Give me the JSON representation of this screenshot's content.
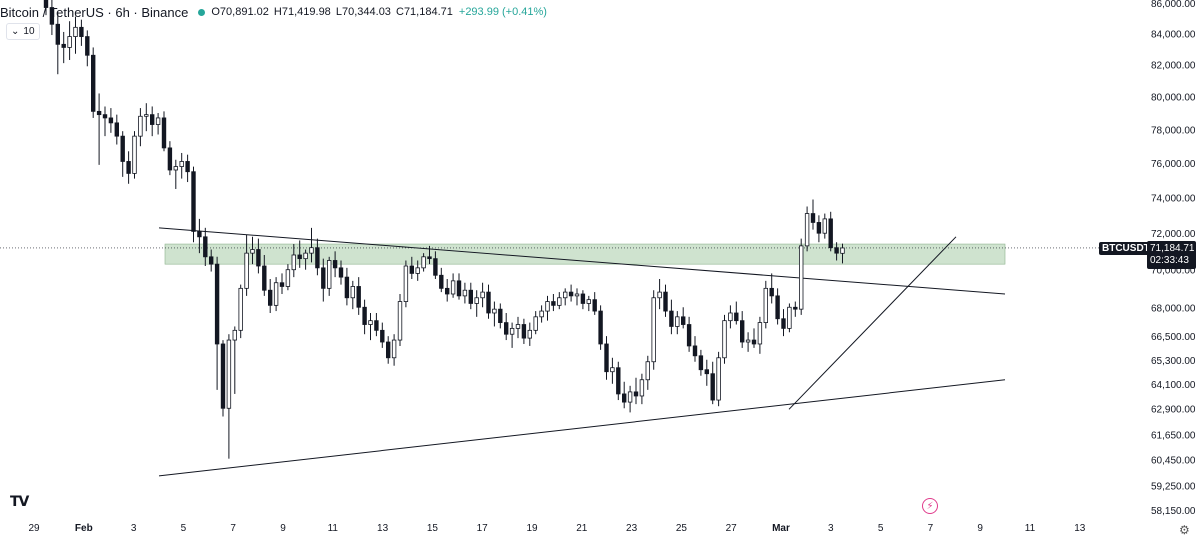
{
  "header": {
    "title": "Bitcoin / TetherUS · 6h · Binance",
    "status_color": "#26a69a",
    "open": "O70,891.02",
    "high": "H71,419.98",
    "low": "L70,344.03",
    "close": "C71,184.71",
    "change": "+293.99 (+0.41%)",
    "change_color": "#26a69a"
  },
  "volume_toggle": {
    "icon": "chevron-down-icon",
    "label": "10"
  },
  "logo": "TV",
  "symbol_tag": "BTCUSDT",
  "last_price": {
    "price": "71,184.71",
    "countdown": "02:33:43"
  },
  "flash_icon": "lightning-icon",
  "settings_icon": "gear-icon",
  "colors": {
    "candle": "#131722",
    "zone": "#cfe3cf",
    "zone_border": "#8db38d",
    "trendline": "#131722",
    "grid": "#f0f3fa"
  },
  "chart_data": {
    "type": "candlestick",
    "x_tick_labels": [
      "29",
      "Feb",
      "3",
      "5",
      "7",
      "9",
      "11",
      "13",
      "15",
      "17",
      "19",
      "21",
      "23",
      "25",
      "27",
      "Mar",
      "3",
      "5",
      "7",
      "9",
      "11",
      "13"
    ],
    "y_tick_labels": [
      "86,000.00",
      "84,000.00",
      "82,000.00",
      "80,000.00",
      "78,000.00",
      "76,000.00",
      "74,000.00",
      "72,000.00",
      "70,000.00",
      "68,000.00",
      "66,500.00",
      "65,300.00",
      "64,100.00",
      "62,900.00",
      "61,650.00",
      "60,450.00",
      "59,250.00",
      "58,150.00"
    ],
    "y_tick_values": [
      86000,
      84000,
      82000,
      80000,
      78000,
      76000,
      74000,
      72000,
      70000,
      68000,
      66500,
      65300,
      64100,
      62900,
      61650,
      60450,
      59250,
      58150
    ],
    "y_scale": "log",
    "ylim": [
      58150,
      86000
    ],
    "candles": [
      {
        "o": 86800,
        "h": 87200,
        "l": 85200,
        "c": 85700
      },
      {
        "o": 85700,
        "h": 86300,
        "l": 83900,
        "c": 84600
      },
      {
        "o": 84600,
        "h": 85400,
        "l": 81400,
        "c": 83300
      },
      {
        "o": 83300,
        "h": 84100,
        "l": 82100,
        "c": 83100
      },
      {
        "o": 83100,
        "h": 84800,
        "l": 82300,
        "c": 83800
      },
      {
        "o": 83800,
        "h": 85100,
        "l": 82700,
        "c": 84400
      },
      {
        "o": 84400,
        "h": 84900,
        "l": 83200,
        "c": 83800
      },
      {
        "o": 83800,
        "h": 84200,
        "l": 81900,
        "c": 82600
      },
      {
        "o": 82600,
        "h": 83100,
        "l": 78700,
        "c": 79100
      },
      {
        "o": 79100,
        "h": 80200,
        "l": 75900,
        "c": 78900
      },
      {
        "o": 78900,
        "h": 79400,
        "l": 77600,
        "c": 78700
      },
      {
        "o": 78700,
        "h": 79300,
        "l": 77800,
        "c": 78400
      },
      {
        "o": 78400,
        "h": 78900,
        "l": 77100,
        "c": 77600
      },
      {
        "o": 77600,
        "h": 77900,
        "l": 75200,
        "c": 76100
      },
      {
        "o": 76100,
        "h": 76700,
        "l": 74800,
        "c": 75400
      },
      {
        "o": 75400,
        "h": 77900,
        "l": 75100,
        "c": 77600
      },
      {
        "o": 77600,
        "h": 79300,
        "l": 77000,
        "c": 78800
      },
      {
        "o": 78800,
        "h": 79600,
        "l": 77900,
        "c": 78900
      },
      {
        "o": 78900,
        "h": 79400,
        "l": 77600,
        "c": 78300
      },
      {
        "o": 78300,
        "h": 79000,
        "l": 77700,
        "c": 78700
      },
      {
        "o": 78700,
        "h": 79100,
        "l": 76700,
        "c": 76900
      },
      {
        "o": 76900,
        "h": 77300,
        "l": 75300,
        "c": 75600
      },
      {
        "o": 75600,
        "h": 76200,
        "l": 74500,
        "c": 75800
      },
      {
        "o": 75800,
        "h": 76600,
        "l": 75100,
        "c": 76100
      },
      {
        "o": 76100,
        "h": 76500,
        "l": 74900,
        "c": 75500
      },
      {
        "o": 75500,
        "h": 75800,
        "l": 71500,
        "c": 72100
      },
      {
        "o": 72100,
        "h": 72800,
        "l": 70900,
        "c": 71800
      },
      {
        "o": 71800,
        "h": 72300,
        "l": 70200,
        "c": 70700
      },
      {
        "o": 70700,
        "h": 71100,
        "l": 69900,
        "c": 70300
      },
      {
        "o": 70300,
        "h": 70700,
        "l": 63800,
        "c": 66100
      },
      {
        "o": 66100,
        "h": 66300,
        "l": 62500,
        "c": 62900
      },
      {
        "o": 62900,
        "h": 66600,
        "l": 60500,
        "c": 66300
      },
      {
        "o": 66300,
        "h": 67000,
        "l": 63600,
        "c": 66800
      },
      {
        "o": 66800,
        "h": 69200,
        "l": 66400,
        "c": 69000
      },
      {
        "o": 69000,
        "h": 71900,
        "l": 68600,
        "c": 70900
      },
      {
        "o": 70900,
        "h": 71800,
        "l": 70300,
        "c": 71100
      },
      {
        "o": 71100,
        "h": 71700,
        "l": 69800,
        "c": 70200
      },
      {
        "o": 70200,
        "h": 70800,
        "l": 68600,
        "c": 68900
      },
      {
        "o": 68900,
        "h": 69500,
        "l": 67700,
        "c": 68100
      },
      {
        "o": 68100,
        "h": 69600,
        "l": 67800,
        "c": 69300
      },
      {
        "o": 69300,
        "h": 69800,
        "l": 68700,
        "c": 69100
      },
      {
        "o": 69100,
        "h": 70300,
        "l": 68900,
        "c": 70000
      },
      {
        "o": 70000,
        "h": 71400,
        "l": 69600,
        "c": 70800
      },
      {
        "o": 70800,
        "h": 71600,
        "l": 70100,
        "c": 70600
      },
      {
        "o": 70600,
        "h": 71100,
        "l": 70000,
        "c": 70900
      },
      {
        "o": 70900,
        "h": 72300,
        "l": 70400,
        "c": 71200
      },
      {
        "o": 71200,
        "h": 71700,
        "l": 69700,
        "c": 70100
      },
      {
        "o": 70100,
        "h": 70600,
        "l": 68300,
        "c": 69000
      },
      {
        "o": 69000,
        "h": 70700,
        "l": 68600,
        "c": 70500
      },
      {
        "o": 70500,
        "h": 71000,
        "l": 69600,
        "c": 70100
      },
      {
        "o": 70100,
        "h": 70500,
        "l": 69200,
        "c": 69600
      },
      {
        "o": 69600,
        "h": 70100,
        "l": 68100,
        "c": 68500
      },
      {
        "o": 68500,
        "h": 69400,
        "l": 67900,
        "c": 69100
      },
      {
        "o": 69100,
        "h": 69600,
        "l": 67600,
        "c": 68000
      },
      {
        "o": 68000,
        "h": 68400,
        "l": 66600,
        "c": 67100
      },
      {
        "o": 67100,
        "h": 67700,
        "l": 66300,
        "c": 67300
      },
      {
        "o": 67300,
        "h": 67700,
        "l": 66500,
        "c": 66800
      },
      {
        "o": 66800,
        "h": 67200,
        "l": 65900,
        "c": 66200
      },
      {
        "o": 66200,
        "h": 66500,
        "l": 65100,
        "c": 65400
      },
      {
        "o": 65400,
        "h": 66600,
        "l": 65000,
        "c": 66300
      },
      {
        "o": 66300,
        "h": 68700,
        "l": 66000,
        "c": 68300
      },
      {
        "o": 68300,
        "h": 70500,
        "l": 68000,
        "c": 70200
      },
      {
        "o": 70200,
        "h": 70700,
        "l": 69500,
        "c": 69800
      },
      {
        "o": 69800,
        "h": 70500,
        "l": 69400,
        "c": 70100
      },
      {
        "o": 70100,
        "h": 70900,
        "l": 69900,
        "c": 70700
      },
      {
        "o": 70700,
        "h": 71300,
        "l": 70300,
        "c": 70600
      },
      {
        "o": 70600,
        "h": 71000,
        "l": 69500,
        "c": 69700
      },
      {
        "o": 69700,
        "h": 70100,
        "l": 68800,
        "c": 69000
      },
      {
        "o": 69000,
        "h": 69500,
        "l": 68300,
        "c": 68700
      },
      {
        "o": 68700,
        "h": 69800,
        "l": 68500,
        "c": 69400
      },
      {
        "o": 69400,
        "h": 69800,
        "l": 68400,
        "c": 68600
      },
      {
        "o": 68600,
        "h": 69300,
        "l": 68200,
        "c": 68900
      },
      {
        "o": 68900,
        "h": 69300,
        "l": 67900,
        "c": 68200
      },
      {
        "o": 68200,
        "h": 68900,
        "l": 67500,
        "c": 68500
      },
      {
        "o": 68500,
        "h": 69300,
        "l": 68000,
        "c": 68800
      },
      {
        "o": 68800,
        "h": 69200,
        "l": 67400,
        "c": 67700
      },
      {
        "o": 67700,
        "h": 68300,
        "l": 67000,
        "c": 67900
      },
      {
        "o": 67900,
        "h": 68200,
        "l": 66900,
        "c": 67200
      },
      {
        "o": 67200,
        "h": 67700,
        "l": 66300,
        "c": 66600
      },
      {
        "o": 66600,
        "h": 67200,
        "l": 65900,
        "c": 66900
      },
      {
        "o": 66900,
        "h": 67500,
        "l": 66400,
        "c": 67100
      },
      {
        "o": 67100,
        "h": 67400,
        "l": 66100,
        "c": 66400
      },
      {
        "o": 66400,
        "h": 67200,
        "l": 66000,
        "c": 66800
      },
      {
        "o": 66800,
        "h": 67800,
        "l": 66600,
        "c": 67500
      },
      {
        "o": 67500,
        "h": 68100,
        "l": 67200,
        "c": 67800
      },
      {
        "o": 67800,
        "h": 68600,
        "l": 67300,
        "c": 68300
      },
      {
        "o": 68300,
        "h": 68700,
        "l": 67800,
        "c": 68100
      },
      {
        "o": 68100,
        "h": 68800,
        "l": 67900,
        "c": 68500
      },
      {
        "o": 68500,
        "h": 69000,
        "l": 68100,
        "c": 68800
      },
      {
        "o": 68800,
        "h": 69200,
        "l": 68300,
        "c": 68600
      },
      {
        "o": 68600,
        "h": 69000,
        "l": 68100,
        "c": 68700
      },
      {
        "o": 68700,
        "h": 68900,
        "l": 67900,
        "c": 68200
      },
      {
        "o": 68200,
        "h": 68600,
        "l": 67800,
        "c": 68400
      },
      {
        "o": 68400,
        "h": 68800,
        "l": 67600,
        "c": 67800
      },
      {
        "o": 67800,
        "h": 68100,
        "l": 65800,
        "c": 66100
      },
      {
        "o": 66100,
        "h": 66500,
        "l": 64300,
        "c": 64700
      },
      {
        "o": 64700,
        "h": 65400,
        "l": 64100,
        "c": 64900
      },
      {
        "o": 64900,
        "h": 65200,
        "l": 63300,
        "c": 63600
      },
      {
        "o": 63600,
        "h": 64200,
        "l": 62900,
        "c": 63200
      },
      {
        "o": 63200,
        "h": 64000,
        "l": 62700,
        "c": 63700
      },
      {
        "o": 63700,
        "h": 64400,
        "l": 63100,
        "c": 63500
      },
      {
        "o": 63500,
        "h": 64600,
        "l": 63100,
        "c": 64300
      },
      {
        "o": 64300,
        "h": 65500,
        "l": 63800,
        "c": 65200
      },
      {
        "o": 65200,
        "h": 68900,
        "l": 64800,
        "c": 68500
      },
      {
        "o": 68500,
        "h": 69500,
        "l": 67900,
        "c": 68800
      },
      {
        "o": 68800,
        "h": 69200,
        "l": 67500,
        "c": 67800
      },
      {
        "o": 67800,
        "h": 68400,
        "l": 66600,
        "c": 67000
      },
      {
        "o": 67000,
        "h": 67800,
        "l": 66600,
        "c": 67500
      },
      {
        "o": 67500,
        "h": 68000,
        "l": 66900,
        "c": 67100
      },
      {
        "o": 67100,
        "h": 67500,
        "l": 65700,
        "c": 66000
      },
      {
        "o": 66000,
        "h": 66500,
        "l": 65200,
        "c": 65500
      },
      {
        "o": 65500,
        "h": 65800,
        "l": 64500,
        "c": 64800
      },
      {
        "o": 64800,
        "h": 65300,
        "l": 64000,
        "c": 64600
      },
      {
        "o": 64600,
        "h": 65200,
        "l": 63100,
        "c": 63300
      },
      {
        "o": 63300,
        "h": 65700,
        "l": 63000,
        "c": 65400
      },
      {
        "o": 65400,
        "h": 67600,
        "l": 65100,
        "c": 67300
      },
      {
        "o": 67300,
        "h": 68100,
        "l": 66900,
        "c": 67700
      },
      {
        "o": 67700,
        "h": 68300,
        "l": 67100,
        "c": 67300
      },
      {
        "o": 67300,
        "h": 67800,
        "l": 65900,
        "c": 66200
      },
      {
        "o": 66200,
        "h": 66700,
        "l": 65700,
        "c": 66300
      },
      {
        "o": 66300,
        "h": 66900,
        "l": 65900,
        "c": 66100
      },
      {
        "o": 66100,
        "h": 67500,
        "l": 65600,
        "c": 67200
      },
      {
        "o": 67200,
        "h": 69400,
        "l": 66900,
        "c": 69000
      },
      {
        "o": 69000,
        "h": 69800,
        "l": 68200,
        "c": 68600
      },
      {
        "o": 68600,
        "h": 69000,
        "l": 67100,
        "c": 67400
      },
      {
        "o": 67400,
        "h": 67900,
        "l": 66500,
        "c": 66900
      },
      {
        "o": 66900,
        "h": 68200,
        "l": 66700,
        "c": 68000
      },
      {
        "o": 68000,
        "h": 68300,
        "l": 67500,
        "c": 67900
      },
      {
        "o": 67900,
        "h": 71700,
        "l": 67600,
        "c": 71300
      },
      {
        "o": 71300,
        "h": 73500,
        "l": 71000,
        "c": 73100
      },
      {
        "o": 73100,
        "h": 73900,
        "l": 72200,
        "c": 72600
      },
      {
        "o": 72600,
        "h": 73000,
        "l": 71500,
        "c": 72000
      },
      {
        "o": 72000,
        "h": 73100,
        "l": 71700,
        "c": 72800
      },
      {
        "o": 72800,
        "h": 73200,
        "l": 71000,
        "c": 71200
      },
      {
        "o": 71200,
        "h": 71500,
        "l": 70500,
        "c": 70900
      },
      {
        "o": 70891.02,
        "h": 71419.98,
        "l": 70344.03,
        "c": 71184.71
      }
    ]
  }
}
